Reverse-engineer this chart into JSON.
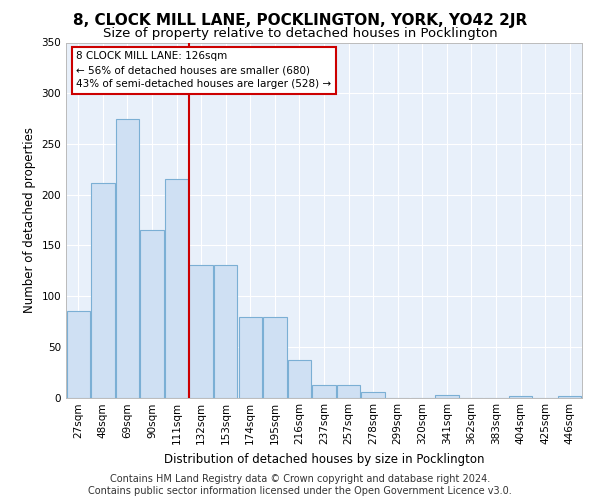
{
  "title": "8, CLOCK MILL LANE, POCKLINGTON, YORK, YO42 2JR",
  "subtitle": "Size of property relative to detached houses in Pocklington",
  "xlabel": "Distribution of detached houses by size in Pocklington",
  "ylabel": "Number of detached properties",
  "bar_color": "#cfe0f3",
  "bar_edge_color": "#7bafd4",
  "bg_color": "#e8f0fa",
  "grid_color": "#ffffff",
  "categories": [
    "27sqm",
    "48sqm",
    "69sqm",
    "90sqm",
    "111sqm",
    "132sqm",
    "153sqm",
    "174sqm",
    "195sqm",
    "216sqm",
    "237sqm",
    "257sqm",
    "278sqm",
    "299sqm",
    "320sqm",
    "341sqm",
    "362sqm",
    "383sqm",
    "404sqm",
    "425sqm",
    "446sqm"
  ],
  "values": [
    85,
    211,
    275,
    165,
    215,
    131,
    131,
    79,
    79,
    37,
    12,
    12,
    5,
    0,
    0,
    2,
    0,
    0,
    1,
    0,
    1
  ],
  "ylim": [
    0,
    350
  ],
  "yticks": [
    0,
    50,
    100,
    150,
    200,
    250,
    300,
    350
  ],
  "property_line_x": 4.5,
  "annotation_text": "8 CLOCK MILL LANE: 126sqm\n← 56% of detached houses are smaller (680)\n43% of semi-detached houses are larger (528) →",
  "annotation_box_color": "#ffffff",
  "annotation_box_edge_color": "#cc0000",
  "footer_text": "Contains HM Land Registry data © Crown copyright and database right 2024.\nContains public sector information licensed under the Open Government Licence v3.0.",
  "red_line_color": "#cc0000",
  "fig_bg_color": "#ffffff",
  "title_fontsize": 11,
  "subtitle_fontsize": 9.5,
  "axis_label_fontsize": 8.5,
  "tick_fontsize": 7.5,
  "footer_fontsize": 7
}
